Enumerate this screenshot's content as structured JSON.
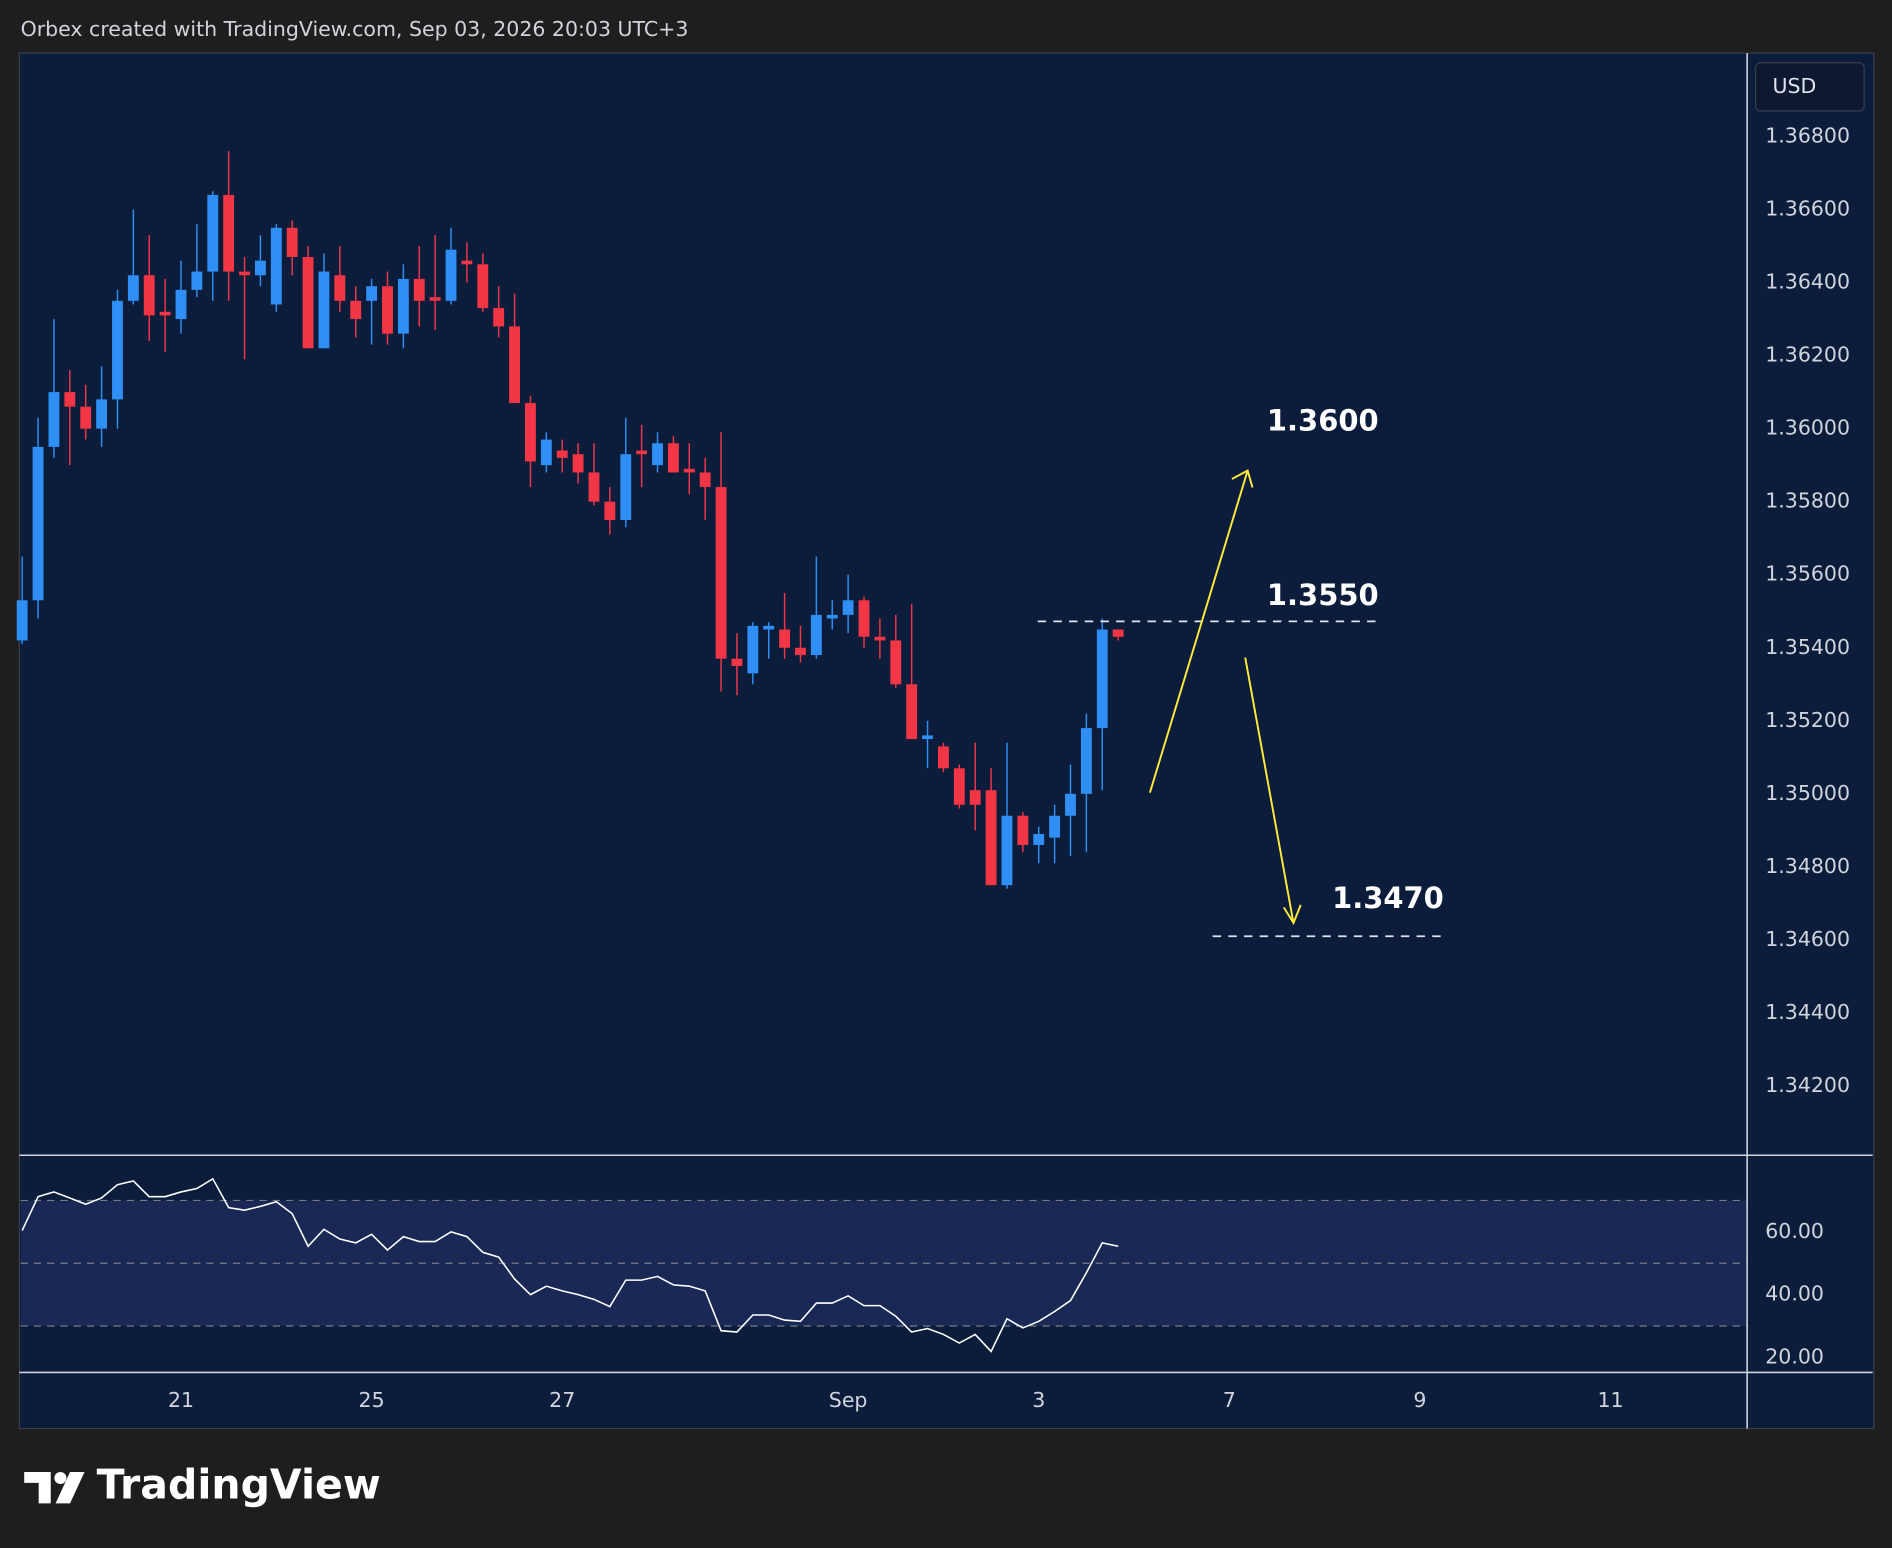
{
  "header": {
    "title": "Orbex created with TradingView.com, Sep 03, 2026 20:03 UTC+3"
  },
  "footer": {
    "logo": "TradingView"
  },
  "chart_data": [
    {
      "type": "candlestick",
      "y_unit_label": "USD",
      "up_color": "#2f8ff5",
      "down_color": "#f23645",
      "open": [
        1.3542,
        1.3553,
        1.3595,
        1.361,
        1.3606,
        1.36,
        1.3608,
        1.3635,
        1.3642,
        1.3632,
        1.363,
        1.3638,
        1.3643,
        1.3664,
        1.3643,
        1.3642,
        1.3634,
        1.3655,
        1.3647,
        1.3622,
        1.3642,
        1.3635,
        1.3635,
        1.3639,
        1.3626,
        1.3641,
        1.3636,
        1.3635,
        1.3646,
        1.3645,
        1.3633,
        1.3628,
        1.3607,
        1.359,
        1.3594,
        1.3593,
        1.3588,
        1.358,
        1.3575,
        1.3594,
        1.359,
        1.3596,
        1.3589,
        1.3588,
        1.3584,
        1.3537,
        1.3533,
        1.3545,
        1.3545,
        1.354,
        1.3538,
        1.3548,
        1.3549,
        1.3553,
        1.3543,
        1.3542,
        1.353,
        1.3515,
        1.3513,
        1.3507,
        1.3501,
        1.3501,
        1.3475,
        1.3494,
        1.3486,
        1.3488,
        1.3494,
        1.35,
        1.3518,
        1.3545
      ],
      "high": [
        1.3565,
        1.3603,
        1.363,
        1.3616,
        1.3612,
        1.3617,
        1.3638,
        1.366,
        1.3653,
        1.3641,
        1.3646,
        1.3656,
        1.3665,
        1.3676,
        1.3647,
        1.3653,
        1.3656,
        1.3657,
        1.365,
        1.3648,
        1.365,
        1.3639,
        1.3641,
        1.3643,
        1.3645,
        1.365,
        1.3653,
        1.3655,
        1.3651,
        1.3648,
        1.3639,
        1.3637,
        1.3609,
        1.3599,
        1.3597,
        1.3596,
        1.3596,
        1.3584,
        1.3603,
        1.3601,
        1.3599,
        1.3598,
        1.3596,
        1.3592,
        1.3599,
        1.3544,
        1.3547,
        1.3547,
        1.3555,
        1.3546,
        1.3565,
        1.3553,
        1.356,
        1.3554,
        1.3548,
        1.3549,
        1.3552,
        1.352,
        1.3514,
        1.3508,
        1.3514,
        1.3507,
        1.3514,
        1.3495,
        1.3491,
        1.3497,
        1.3508,
        1.3522,
        1.3548,
        1.3545
      ],
      "low": [
        1.3541,
        1.3548,
        1.3592,
        1.359,
        1.3597,
        1.3595,
        1.36,
        1.3634,
        1.3624,
        1.3621,
        1.3626,
        1.3636,
        1.3635,
        1.3635,
        1.3619,
        1.3639,
        1.3632,
        1.3642,
        1.3622,
        1.3622,
        1.3632,
        1.3625,
        1.3623,
        1.3623,
        1.3622,
        1.3628,
        1.3627,
        1.3634,
        1.364,
        1.3632,
        1.3625,
        1.3607,
        1.3584,
        1.3588,
        1.3588,
        1.3585,
        1.3579,
        1.3571,
        1.3573,
        1.3584,
        1.3588,
        1.3588,
        1.3582,
        1.3575,
        1.3528,
        1.3527,
        1.353,
        1.3537,
        1.3537,
        1.3536,
        1.3537,
        1.3545,
        1.3544,
        1.354,
        1.3537,
        1.3529,
        1.3515,
        1.3507,
        1.3506,
        1.3496,
        1.349,
        1.3475,
        1.3474,
        1.3484,
        1.3481,
        1.3481,
        1.3483,
        1.3484,
        1.3501,
        1.3542
      ],
      "close": [
        1.3553,
        1.3595,
        1.361,
        1.3606,
        1.36,
        1.3608,
        1.3635,
        1.3642,
        1.3631,
        1.3631,
        1.3638,
        1.3643,
        1.3664,
        1.3643,
        1.3642,
        1.3646,
        1.3655,
        1.3647,
        1.3622,
        1.3643,
        1.3635,
        1.363,
        1.3639,
        1.3626,
        1.3641,
        1.3635,
        1.3635,
        1.3649,
        1.3645,
        1.3633,
        1.3628,
        1.3607,
        1.3591,
        1.3597,
        1.3592,
        1.3588,
        1.358,
        1.3575,
        1.3593,
        1.3593,
        1.3596,
        1.3588,
        1.3588,
        1.3584,
        1.3537,
        1.3535,
        1.3546,
        1.3546,
        1.354,
        1.3538,
        1.3549,
        1.3549,
        1.3553,
        1.3543,
        1.3542,
        1.353,
        1.3515,
        1.3516,
        1.3507,
        1.3497,
        1.3497,
        1.3475,
        1.3494,
        1.3486,
        1.3489,
        1.3494,
        1.35,
        1.3518,
        1.3545,
        1.3543
      ],
      "xlim": [
        -0.1,
        108.6
      ],
      "xticks": [
        {
          "value": 10,
          "label": "21"
        },
        {
          "value": 22,
          "label": "25"
        },
        {
          "value": 34,
          "label": "27"
        },
        {
          "value": 52,
          "label": "Sep"
        },
        {
          "value": 64,
          "label": "3"
        },
        {
          "value": 76,
          "label": "7"
        },
        {
          "value": 88,
          "label": "9"
        },
        {
          "value": 100,
          "label": "11"
        }
      ],
      "ylim": [
        1.34012,
        1.37025
      ],
      "yticks": [
        {
          "value": 1.368,
          "label": "1.36800"
        },
        {
          "value": 1.366,
          "label": "1.36600"
        },
        {
          "value": 1.364,
          "label": "1.36400"
        },
        {
          "value": 1.362,
          "label": "1.36200"
        },
        {
          "value": 1.36,
          "label": "1.36000"
        },
        {
          "value": 1.358,
          "label": "1.35800"
        },
        {
          "value": 1.356,
          "label": "1.35600"
        },
        {
          "value": 1.354,
          "label": "1.35400"
        },
        {
          "value": 1.352,
          "label": "1.35200"
        },
        {
          "value": 1.35,
          "label": "1.35000"
        },
        {
          "value": 1.348,
          "label": "1.34800"
        },
        {
          "value": 1.346,
          "label": "1.34600"
        },
        {
          "value": 1.344,
          "label": "1.34400"
        },
        {
          "value": 1.342,
          "label": "1.34200"
        }
      ],
      "annotations": [
        "1.3600",
        "1.3550",
        "1.3470"
      ]
    },
    {
      "type": "line",
      "color": "#ffffff",
      "values": [
        60.4,
        71.2,
        72.7,
        70.8,
        68.8,
        70.8,
        75.0,
        76.2,
        71.2,
        71.2,
        72.7,
        73.8,
        76.9,
        67.7,
        66.9,
        68.1,
        69.6,
        65.8,
        55.4,
        60.8,
        57.7,
        56.5,
        59.2,
        54.2,
        58.5,
        56.9,
        56.9,
        60.0,
        58.5,
        53.5,
        51.9,
        45.0,
        40.0,
        42.7,
        41.2,
        40.0,
        38.5,
        36.2,
        44.6,
        44.6,
        45.8,
        43.1,
        42.7,
        41.2,
        28.5,
        28.1,
        33.5,
        33.5,
        31.9,
        31.5,
        37.3,
        37.3,
        39.6,
        36.5,
        36.5,
        33.1,
        28.1,
        29.2,
        27.3,
        24.6,
        27.3,
        21.9,
        32.3,
        29.4,
        31.5,
        34.6,
        38.1,
        46.9,
        56.5,
        55.4
      ],
      "xlim": [
        -0.1,
        108.6
      ],
      "ylim": [
        15.4,
        84.2
      ],
      "yticks": [
        {
          "value": 60,
          "label": "60.00"
        },
        {
          "value": 40,
          "label": "40.00"
        },
        {
          "value": 20,
          "label": "20.00"
        }
      ],
      "levels": [
        70,
        50,
        30
      ]
    }
  ]
}
